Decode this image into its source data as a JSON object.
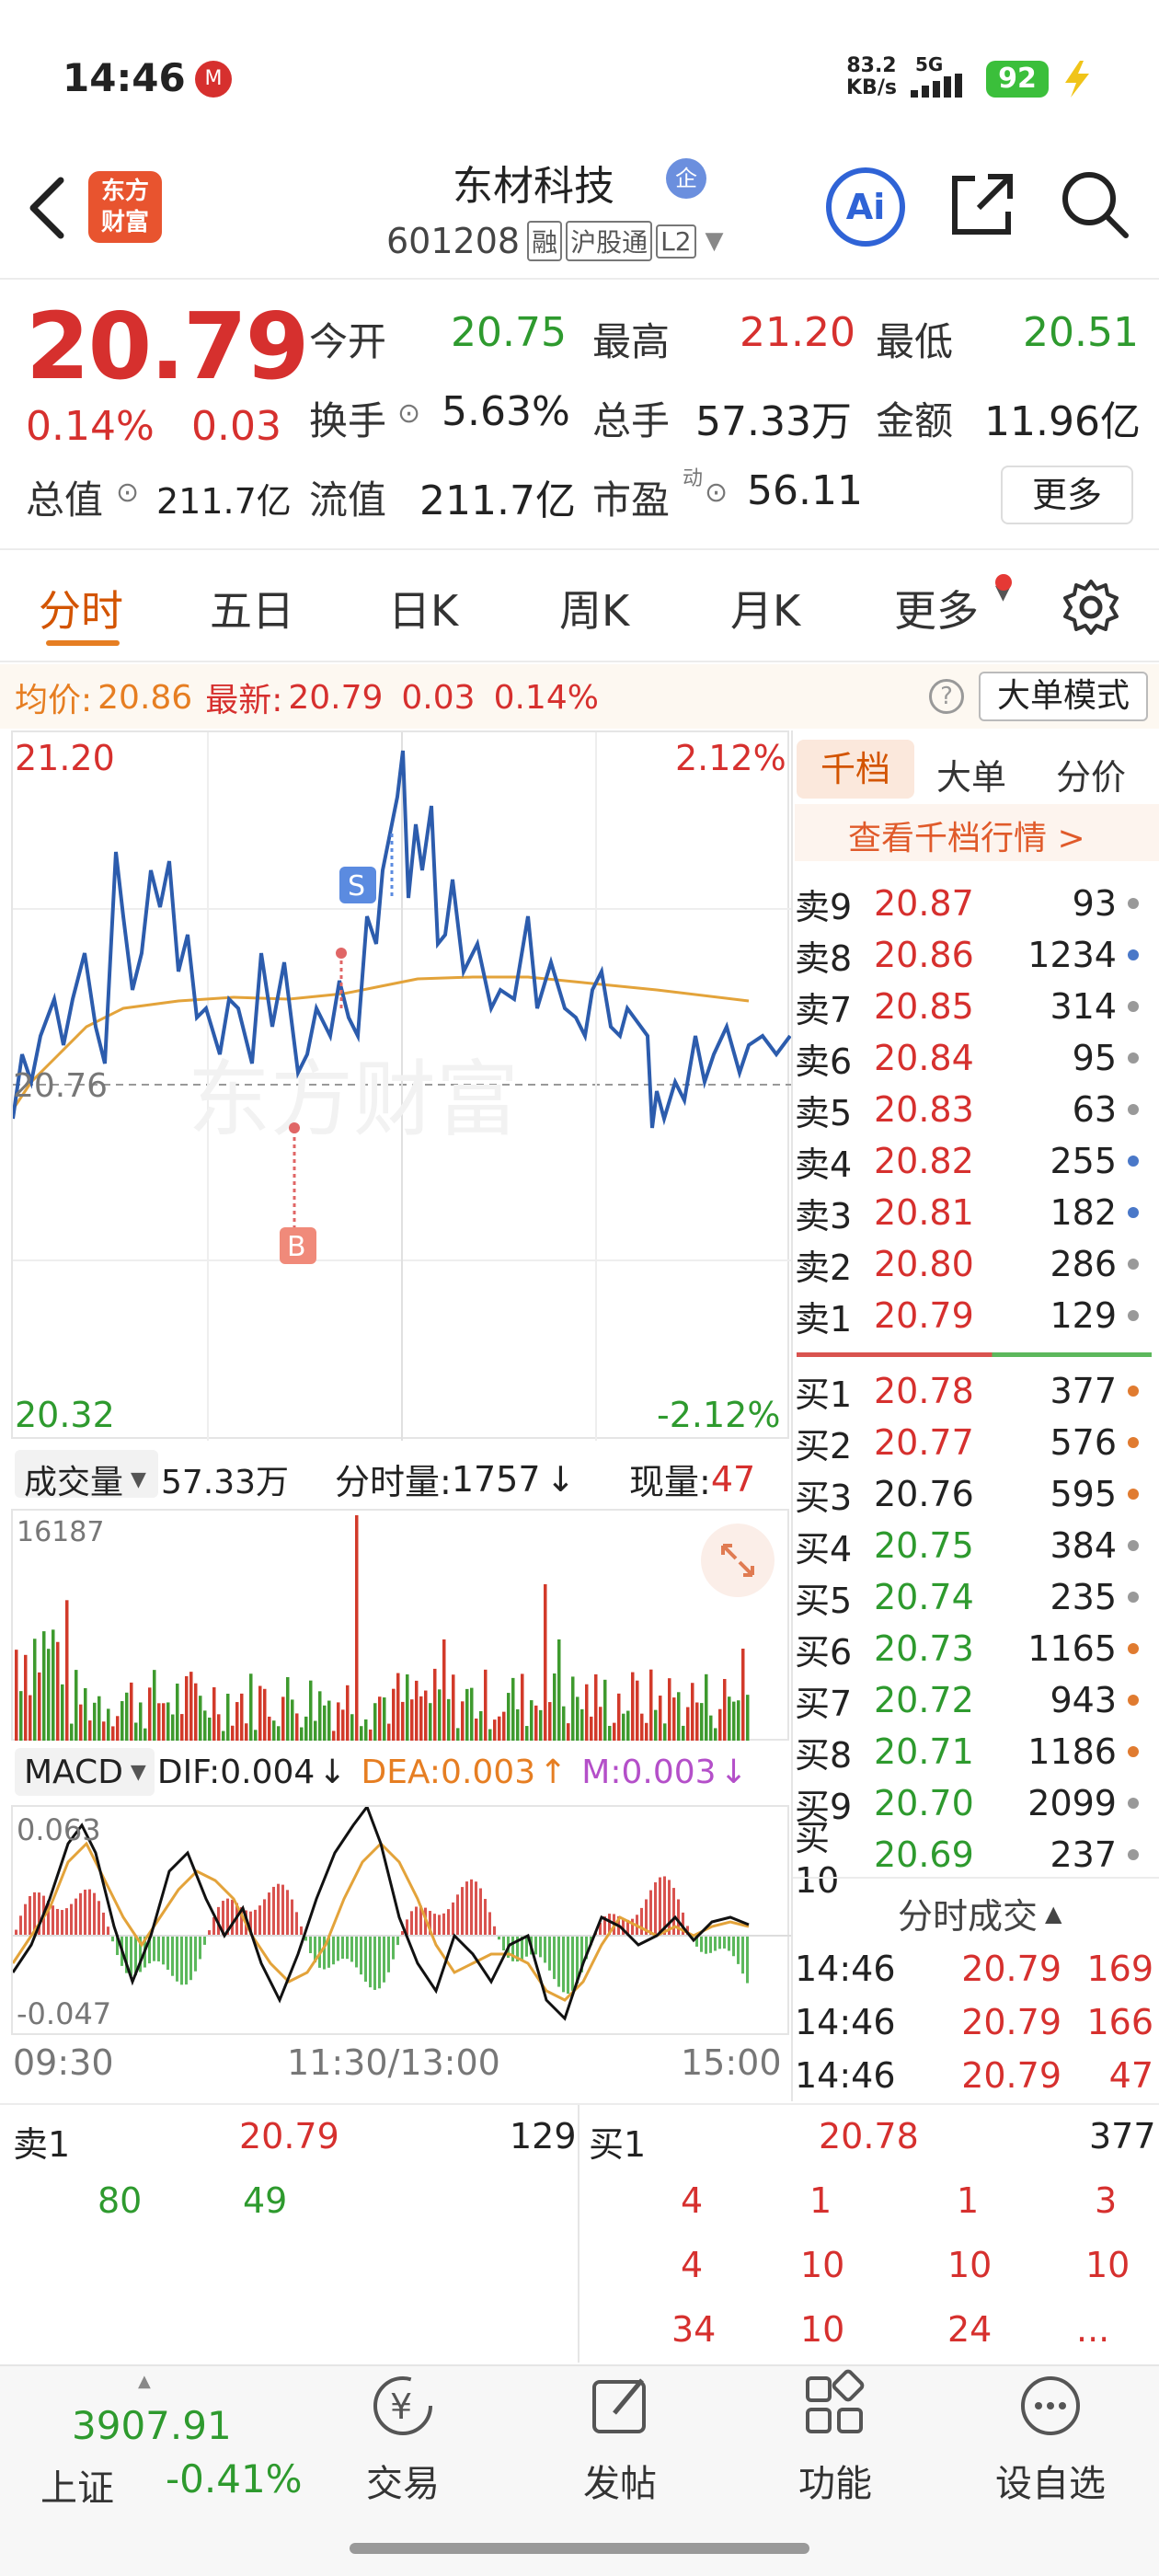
{
  "status_bar": {
    "time": "14:46",
    "net_speed": "83.2",
    "net_unit": "KB/s",
    "signal": "5G",
    "battery": "92"
  },
  "header": {
    "logo_line1": "东方",
    "logo_line2": "财富",
    "title": "东材科技",
    "title_badge": "企",
    "code": "601208",
    "tag1": "融",
    "tag2": "沪股通",
    "tag3": "L2",
    "ai_label": "Ai"
  },
  "quote": {
    "price": "20.79",
    "change_pct": "0.14%",
    "change": "0.03",
    "open_label": "今开",
    "open": "20.75",
    "high_label": "最高",
    "high": "21.20",
    "low_label": "最低",
    "low": "20.51",
    "turnover_label": "换手",
    "turnover": "5.63%",
    "volume_label": "总手",
    "volume": "57.33万",
    "amount_label": "金额",
    "amount": "11.96亿",
    "mcap_label": "总值",
    "mcap": "211.7亿",
    "float_label": "流值",
    "float": "211.7亿",
    "pe_label": "市盈",
    "pe_sup": "动",
    "pe": "56.11",
    "more": "更多"
  },
  "tabs": [
    "分时",
    "五日",
    "日K",
    "周K",
    "月K",
    "更多"
  ],
  "info_bar": {
    "avg_label": "均价:",
    "avg": "20.86",
    "latest_label": "最新:",
    "latest": "20.79",
    "chg": "0.03",
    "pct": "0.14%",
    "mode": "大单模式"
  },
  "chart": {
    "y_high": "21.20",
    "y_low": "20.32",
    "pct_high": "2.12%",
    "pct_low": "-2.12%",
    "mid": "20.76",
    "marker_s": "S",
    "marker_b": "B"
  },
  "volume_bar": {
    "label": "成交量",
    "total": "57.33万",
    "ts_label": "分时量:",
    "ts_value": "1757",
    "ts_arrow": "↓",
    "now_label": "现量:",
    "now_value": "47",
    "max": "16187"
  },
  "macd_bar": {
    "label": "MACD",
    "dif": "DIF:0.004",
    "dif_arrow": "↓",
    "dea": "DEA:0.003",
    "dea_arrow": "↑",
    "m": "M:0.003",
    "m_arrow": "↓",
    "max": "0.063",
    "min": "-0.047"
  },
  "time_axis": [
    "09:30",
    "11:30/13:00",
    "15:00"
  ],
  "orderbook": {
    "tabs": [
      "千档",
      "大单",
      "分价"
    ],
    "link": "查看千档行情 >",
    "sells": [
      {
        "label": "卖9",
        "price": "20.87",
        "vol": "93"
      },
      {
        "label": "卖8",
        "price": "20.86",
        "vol": "1234"
      },
      {
        "label": "卖7",
        "price": "20.85",
        "vol": "314"
      },
      {
        "label": "卖6",
        "price": "20.84",
        "vol": "95"
      },
      {
        "label": "卖5",
        "price": "20.83",
        "vol": "63"
      },
      {
        "label": "卖4",
        "price": "20.82",
        "vol": "255"
      },
      {
        "label": "卖3",
        "price": "20.81",
        "vol": "182"
      },
      {
        "label": "卖2",
        "price": "20.80",
        "vol": "286"
      },
      {
        "label": "卖1",
        "price": "20.79",
        "vol": "129"
      }
    ],
    "buys": [
      {
        "label": "买1",
        "price": "20.78",
        "vol": "377"
      },
      {
        "label": "买2",
        "price": "20.77",
        "vol": "576"
      },
      {
        "label": "买3",
        "price": "20.76",
        "vol": "595"
      },
      {
        "label": "买4",
        "price": "20.75",
        "vol": "384"
      },
      {
        "label": "买5",
        "price": "20.74",
        "vol": "235"
      },
      {
        "label": "买6",
        "price": "20.73",
        "vol": "1165"
      },
      {
        "label": "买7",
        "price": "20.72",
        "vol": "943"
      },
      {
        "label": "买8",
        "price": "20.71",
        "vol": "1186"
      },
      {
        "label": "买9",
        "price": "20.70",
        "vol": "2099"
      },
      {
        "label": "买10",
        "price": "20.69",
        "vol": "237"
      }
    ],
    "ticks_label": "分时成交",
    "ticks": [
      {
        "time": "14:46",
        "price": "20.79",
        "vol": "169"
      },
      {
        "time": "14:46",
        "price": "20.79",
        "vol": "166"
      },
      {
        "time": "14:46",
        "price": "20.79",
        "vol": "47"
      }
    ]
  },
  "queue": {
    "sell_label": "卖1",
    "sell_price": "20.79",
    "sell_vol": "129",
    "sell_q": [
      "80",
      "49"
    ],
    "buy_label": "买1",
    "buy_price": "20.78",
    "buy_vol": "377",
    "buy_q": [
      [
        "4",
        "1",
        "1",
        "3"
      ],
      [
        "4",
        "10",
        "10",
        "10"
      ],
      [
        "34",
        "10",
        "24",
        "..."
      ]
    ]
  },
  "bottom_nav": {
    "index_value": "3907.91",
    "index_name": "上证",
    "index_pct": "-0.41%",
    "items": [
      "交易",
      "发帖",
      "功能",
      "设自选"
    ]
  }
}
